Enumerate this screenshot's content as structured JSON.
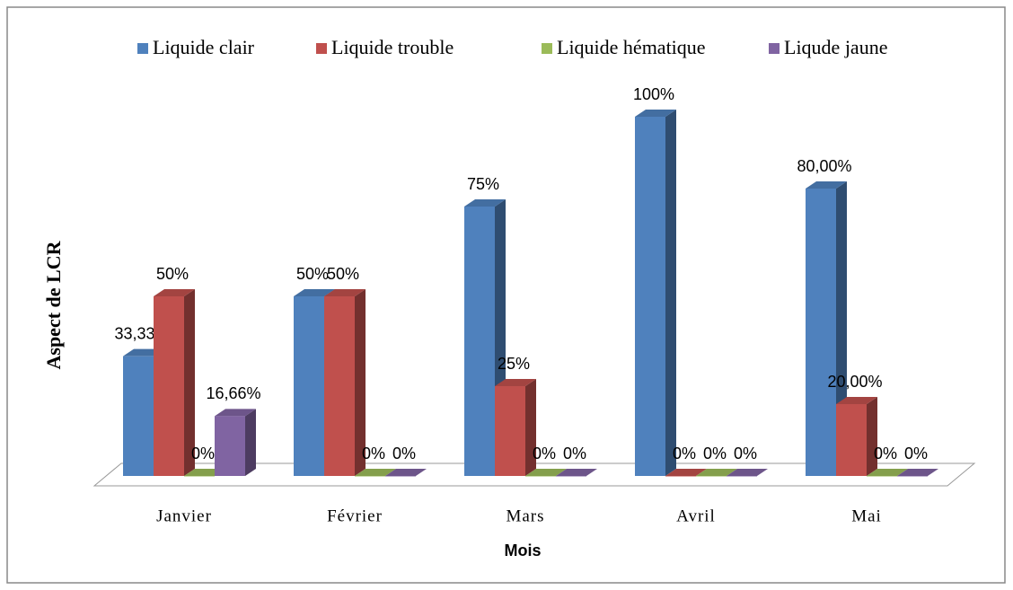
{
  "chart_data": {
    "type": "bar3d",
    "x_label": "Mois",
    "y_label": "Aspect de LCR",
    "categories": [
      "Janvier",
      "Février",
      "Mars",
      "Avril",
      "Mai"
    ],
    "series": [
      {
        "name": "Liquide clair",
        "color": "#4f81bd",
        "values": [
          33.33,
          50,
          75,
          100,
          80
        ],
        "value_labels": [
          "33,33%",
          "50%",
          "75%",
          "100%",
          "80,00%"
        ]
      },
      {
        "name": "Liquide trouble",
        "color": "#c0504d",
        "values": [
          50,
          50,
          25,
          0,
          20
        ],
        "value_labels": [
          "50%",
          "50%",
          "25%",
          "0%",
          "20,00%"
        ]
      },
      {
        "name": "Liquide hématique",
        "color": "#9bbb59",
        "values": [
          0,
          0,
          0,
          0,
          0
        ],
        "value_labels": [
          "0%",
          "0%",
          "0%",
          "0%",
          "0%"
        ]
      },
      {
        "name": "Liqude jaune",
        "color": "#8064a2",
        "values": [
          16.66,
          0,
          0,
          0,
          0
        ],
        "value_labels": [
          "16,66%",
          "0%",
          "0%",
          "0%",
          "0%"
        ]
      }
    ],
    "legend": "top"
  }
}
